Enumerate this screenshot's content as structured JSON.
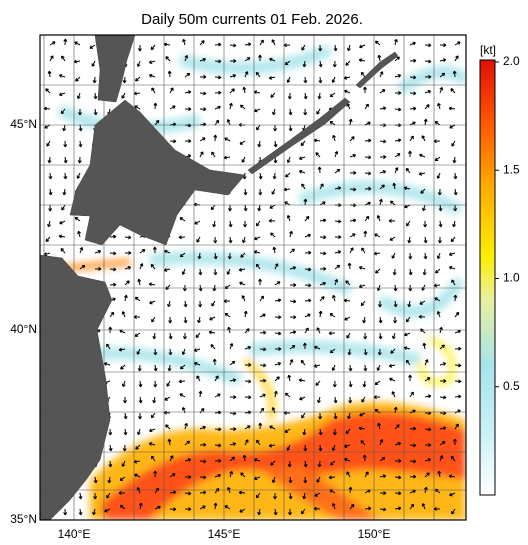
{
  "title": "Daily 50m currents 01 Feb. 2026.",
  "map": {
    "lat_labels": [
      "45°N",
      "40°N",
      "35°N"
    ],
    "lon_labels": [
      "140°E",
      "145°E",
      "150°E"
    ]
  },
  "colorbar": {
    "label": "[kt]",
    "range": [
      0,
      2
    ],
    "ticks": [
      {
        "value": 2,
        "label": "2.0"
      },
      {
        "value": 1.5,
        "label": "1.5"
      },
      {
        "value": 1,
        "label": "1.0"
      },
      {
        "value": 0.5,
        "label": "0.5"
      }
    ]
  }
}
